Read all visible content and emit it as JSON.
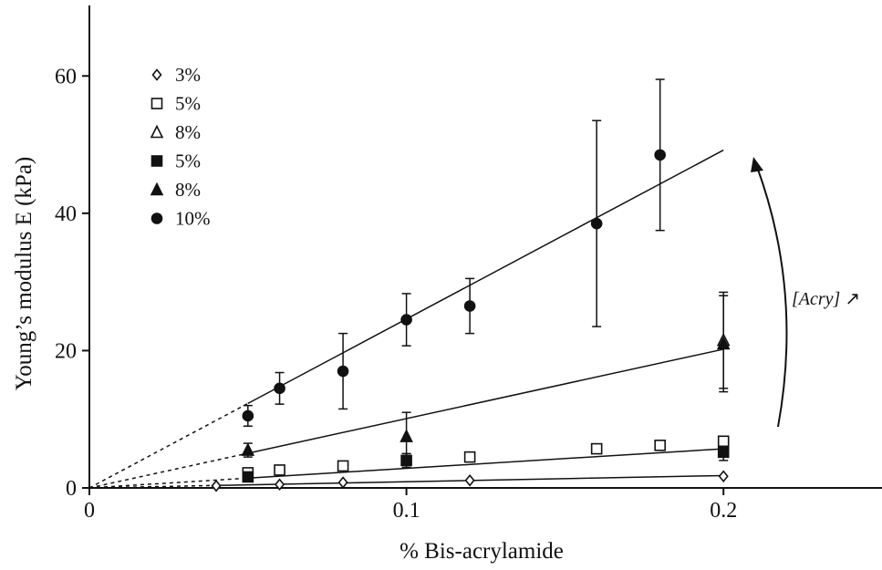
{
  "chart_data": {
    "type": "scatter",
    "xlabel": "% Bis-acrylamide",
    "ylabel": "Young’s modulus E (kPa)",
    "xlim": [
      0,
      0.25
    ],
    "ylim": [
      0,
      70
    ],
    "x_ticks": [
      0,
      0.1,
      0.2
    ],
    "x_tick_labels": [
      "0",
      "0.1",
      "0.2"
    ],
    "y_ticks": [
      0,
      20,
      40,
      60
    ],
    "y_tick_labels": [
      "0",
      "20",
      "40",
      "60"
    ],
    "grid": false,
    "legend_position": "top-left",
    "annotation": {
      "text": "[Acry]",
      "arrow": "↗"
    },
    "series": [
      {
        "name": "3%",
        "marker": "diamond-open",
        "points": [
          {
            "x": 0.04,
            "y": 0.3
          },
          {
            "x": 0.06,
            "y": 0.5
          },
          {
            "x": 0.08,
            "y": 0.8
          },
          {
            "x": 0.12,
            "y": 1.1
          },
          {
            "x": 0.2,
            "y": 1.7
          }
        ],
        "fit": [
          0.0,
          1.8
        ]
      },
      {
        "name": "5%",
        "marker": "square-open",
        "points": [
          {
            "x": 0.05,
            "y": 2.2
          },
          {
            "x": 0.06,
            "y": 2.6
          },
          {
            "x": 0.08,
            "y": 3.2
          },
          {
            "x": 0.12,
            "y": 4.5
          },
          {
            "x": 0.16,
            "y": 5.7
          },
          {
            "x": 0.18,
            "y": 6.2
          },
          {
            "x": 0.2,
            "y": 6.8
          }
        ],
        "fit": [
          0.0,
          5.7
        ]
      },
      {
        "name": "8%",
        "marker": "triangle-open",
        "points": [
          {
            "x": 0.2,
            "y": 21.5,
            "err": 7.0
          }
        ],
        "fit": [
          0.0,
          20.2
        ]
      },
      {
        "name": "5%",
        "marker": "square-filled",
        "points": [
          {
            "x": 0.05,
            "y": 1.6
          },
          {
            "x": 0.1,
            "y": 4.0,
            "err": 1.0
          },
          {
            "x": 0.2,
            "y": 5.2,
            "err": 1.2
          }
        ]
      },
      {
        "name": "8%",
        "marker": "triangle-filled",
        "points": [
          {
            "x": 0.05,
            "y": 5.5,
            "err": 1.0
          },
          {
            "x": 0.1,
            "y": 7.5,
            "err": 3.5
          },
          {
            "x": 0.2,
            "y": 21.0,
            "err": 7.0
          }
        ]
      },
      {
        "name": "10%",
        "marker": "circle-filled",
        "points": [
          {
            "x": 0.05,
            "y": 10.5,
            "err": 1.5
          },
          {
            "x": 0.06,
            "y": 14.5,
            "err": 2.3
          },
          {
            "x": 0.08,
            "y": 17.0,
            "err": 5.5
          },
          {
            "x": 0.1,
            "y": 24.5,
            "err": 3.8
          },
          {
            "x": 0.12,
            "y": 26.5,
            "err": 4.0
          },
          {
            "x": 0.16,
            "y": 38.5,
            "err": 15.0
          },
          {
            "x": 0.18,
            "y": 48.5,
            "err": 11.0
          }
        ],
        "fit": [
          0.0,
          49.2
        ]
      }
    ]
  }
}
